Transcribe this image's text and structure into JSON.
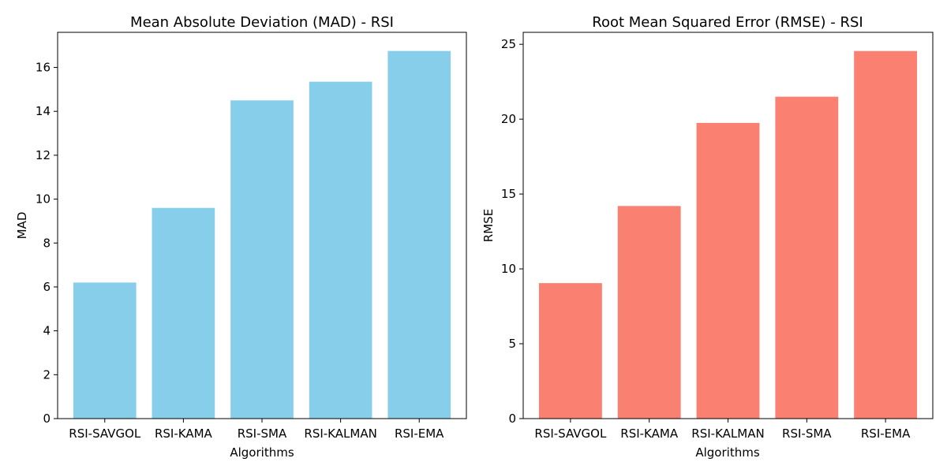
{
  "chart_data": [
    {
      "type": "bar",
      "title": "Mean Absolute Deviation (MAD) - RSI",
      "xlabel": "Algorithms",
      "ylabel": "MAD",
      "categories": [
        "RSI-SAVGOL",
        "RSI-KAMA",
        "RSI-SMA",
        "RSI-KALMAN",
        "RSI-EMA"
      ],
      "values": [
        6.2,
        9.6,
        14.5,
        15.35,
        16.75
      ],
      "ylim": [
        0,
        17.6
      ],
      "yticks": [
        0,
        2,
        4,
        6,
        8,
        10,
        12,
        14,
        16
      ],
      "color": "#87CEEB",
      "grid": false,
      "legend": false
    },
    {
      "type": "bar",
      "title": "Root Mean Squared Error (RMSE) - RSI",
      "xlabel": "Algorithms",
      "ylabel": "RMSE",
      "categories": [
        "RSI-SAVGOL",
        "RSI-KAMA",
        "RSI-KALMAN",
        "RSI-SMA",
        "RSI-EMA"
      ],
      "values": [
        9.05,
        14.2,
        19.75,
        21.5,
        24.55
      ],
      "ylim": [
        0,
        25.8
      ],
      "yticks": [
        0,
        5,
        10,
        15,
        20,
        25
      ],
      "color": "#FA8072",
      "grid": false,
      "legend": false
    }
  ]
}
